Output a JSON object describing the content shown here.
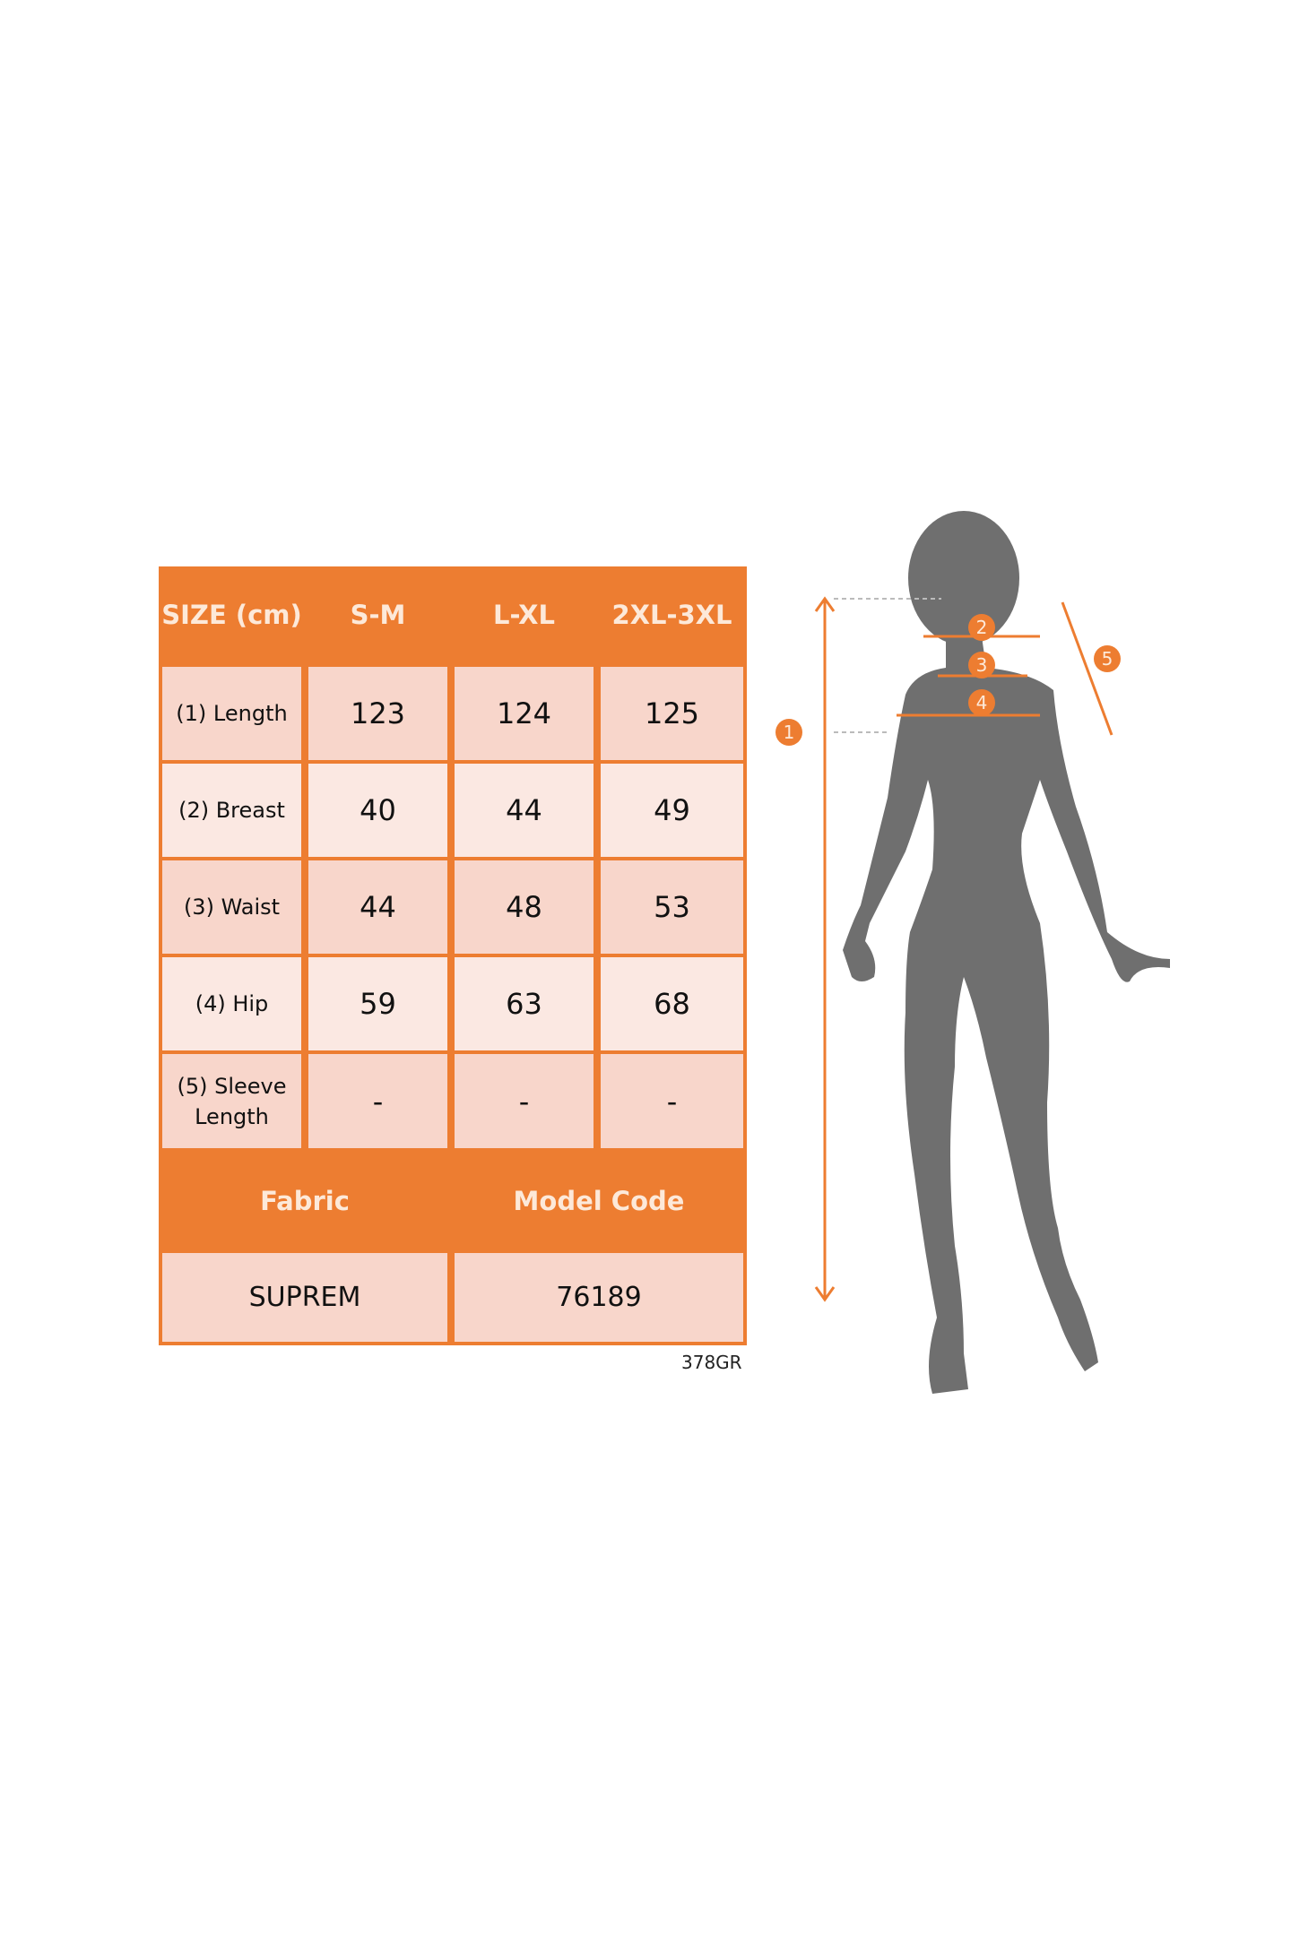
{
  "table": {
    "header": {
      "size_label": "SIZE (cm)",
      "sizes": [
        "S-M",
        "L-XL",
        "2XL-3XL"
      ]
    },
    "rows": [
      {
        "label": "(1) Length",
        "values": [
          "123",
          "124",
          "125"
        ]
      },
      {
        "label": "(2) Breast",
        "values": [
          "40",
          "44",
          "49"
        ]
      },
      {
        "label": "(3) Waist",
        "values": [
          "44",
          "48",
          "53"
        ]
      },
      {
        "label": "(4) Hip",
        "values": [
          "59",
          "63",
          "68"
        ]
      },
      {
        "label": "(5) Sleeve Length",
        "values": [
          "-",
          "-",
          "-"
        ]
      }
    ],
    "footer_headers": {
      "fabric": "Fabric",
      "model_code": "Model Code"
    },
    "footer_values": {
      "fabric": "SUPREM",
      "model_code": "76189"
    }
  },
  "code_label": "378GR",
  "figure": {
    "markers": [
      "1",
      "2",
      "3",
      "4",
      "5"
    ]
  },
  "colors": {
    "accent": "#ed7d31",
    "row_dark": "#f8d6cb",
    "row_light": "#fbe8e2",
    "silhouette": "#6f6f6f"
  }
}
